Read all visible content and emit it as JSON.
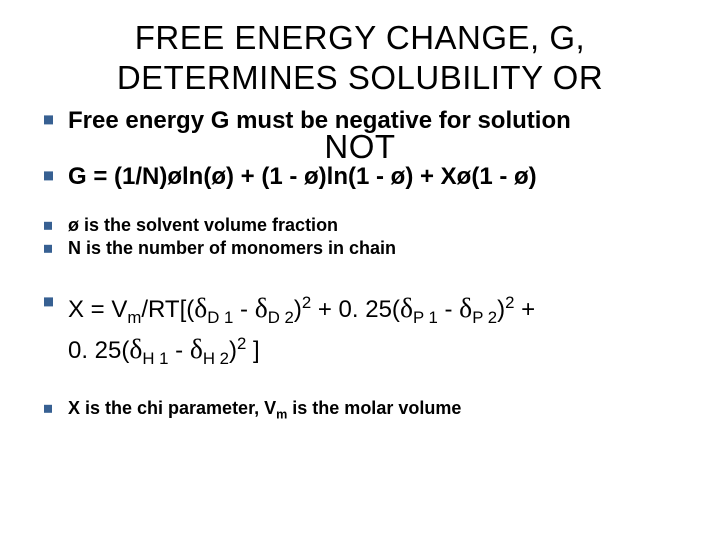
{
  "title_line1": "FREE ENERGY CHANGE, G,",
  "title_line2": "DETERMINES SOLUBILITY OR",
  "title_line3": "NOT",
  "bullets": {
    "b1": "Free energy G must be negative for solution",
    "b2": "G = (1/N)øln(ø) + (1 - ø)ln(1 - ø) + Xø(1 - ø)",
    "b3": " ø is the solvent volume fraction",
    "b4": "N is the number of monomers in chain",
    "b5_pre": "X = V",
    "b5_m": "m",
    "b5_rt": "/RT[(",
    "b5_d": "δ",
    "b5_D1": "D 1",
    "b5_minus": " - ",
    "b5_D2": "D 2",
    "b5_paren2": ")",
    "b5_sq": "2",
    "b5_plus025a": " + 0. 25(",
    "b5_P1": "P 1",
    "b5_P2": "P 2",
    "b5_plus": " + ",
    "b5_025b": "0. 25(",
    "b5_H1": "H 1",
    "b5_H2": "H 2",
    "b5_end": " ]",
    "b6_pre": "X is the chi parameter, V",
    "b6_m": "m",
    "b6_post": " is the molar volume"
  },
  "colors": {
    "bullet": "#376092",
    "text": "#000000",
    "background": "#ffffff"
  },
  "fonts": {
    "title_size": 33,
    "body_large": 24,
    "body_small": 18
  }
}
